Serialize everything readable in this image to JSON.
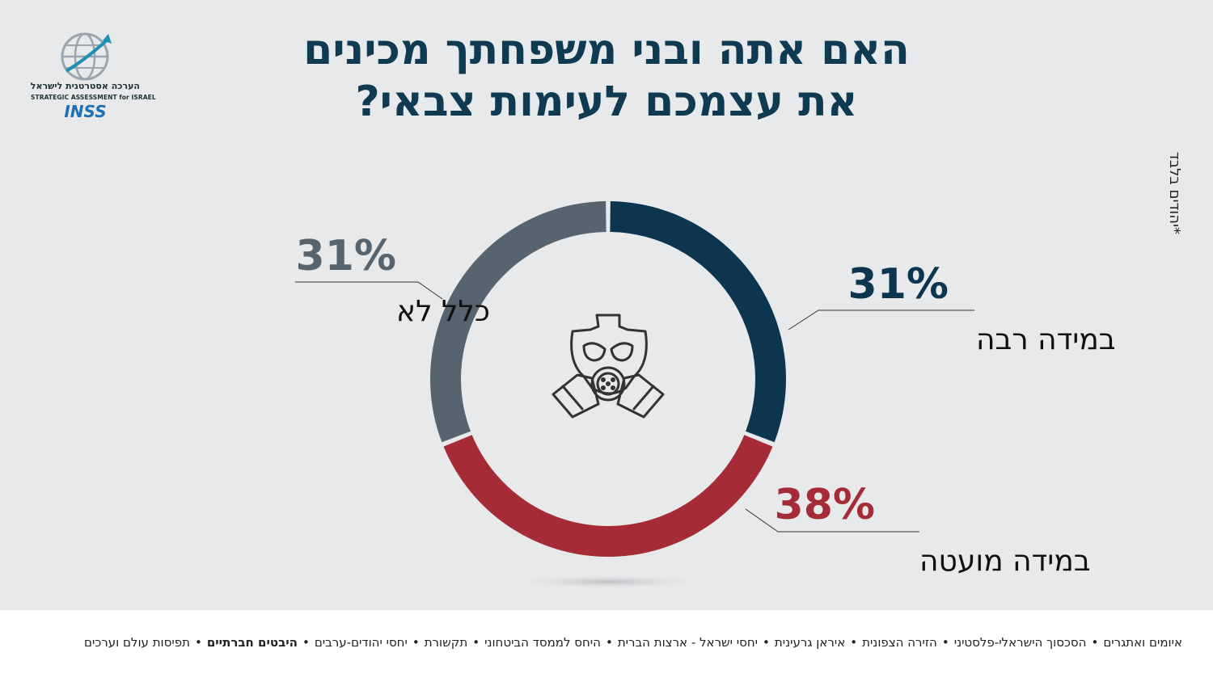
{
  "title": {
    "line1": "האם אתה ובני משפחתך מכינים",
    "line2": "את עצמכם לעימות צבאי?"
  },
  "logo": {
    "hebrew": "הערכה אסטרטגית לישראל",
    "english": "STRATEGIC ASSESSMENT for ISRAEL",
    "brand": "INSS"
  },
  "side_note": "*יהודים בלבד",
  "center_icon": "gas-mask-icon",
  "colors": {
    "background": "#e8e9eb",
    "title": "#0e3a52",
    "large_extent": "#0c3550",
    "small_extent": "#a52c36",
    "not_at_all": "#55646e"
  },
  "chart_data": {
    "type": "pie",
    "donut": true,
    "labels": [
      "במידה רבה",
      "במידה מועטה",
      "כלל לא"
    ],
    "values": [
      31,
      38,
      31
    ],
    "value_labels": [
      "31%",
      "38%",
      "31%"
    ],
    "colors": [
      "#0c3550",
      "#a52c36",
      "#55646e"
    ]
  },
  "footer": {
    "items": [
      {
        "text": "איומים ואתגרים",
        "highlight": false
      },
      {
        "text": "הסכסוך הישראלי-פלסטיני",
        "highlight": false
      },
      {
        "text": "הזירה הצפונית",
        "highlight": false
      },
      {
        "text": "איראן גרעינית",
        "highlight": false
      },
      {
        "text": "יחסי ישראל - ארצות הברית",
        "highlight": false
      },
      {
        "text": "היחס לממסד הביטחוני",
        "highlight": false
      },
      {
        "text": "תקשורת",
        "highlight": false
      },
      {
        "text": "יחסי יהודים-ערבים",
        "highlight": false
      },
      {
        "text": "היבטים חברתיים",
        "highlight": true
      },
      {
        "text": "תפיסות עולם וערכים",
        "highlight": false
      }
    ],
    "separator": "•"
  }
}
